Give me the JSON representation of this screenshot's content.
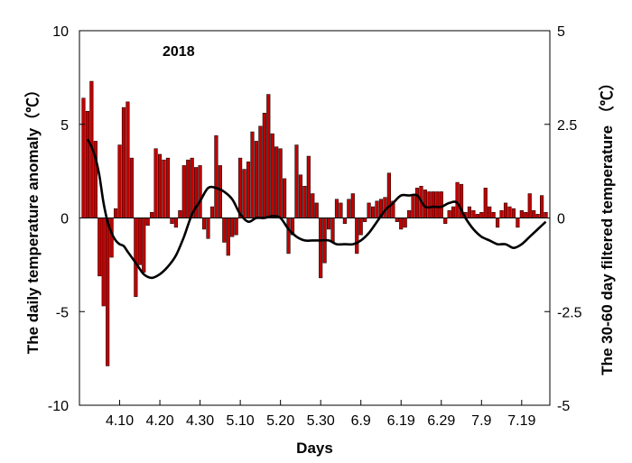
{
  "chart_data": {
    "type": "bar",
    "annotation": "2018",
    "xlabel": "Days",
    "ylabel_left": "The daily temperature anomaly（℃）",
    "ylabel_right": "The 30-60 day filtered temperature （℃）",
    "ylim_left": [
      -10,
      10
    ],
    "ylim_right": [
      -5,
      5
    ],
    "yticks_left": [
      "-10",
      "-5",
      "0",
      "5",
      "10"
    ],
    "yticks_right": [
      "-5",
      "-2.5",
      "0",
      "2.5",
      "5"
    ],
    "xticks": [
      "4.10",
      "4.20",
      "4.30",
      "5.10",
      "5.20",
      "5.30",
      "6.9",
      "6.19",
      "6.29",
      "7.9",
      "7.19"
    ],
    "xtick_days": [
      10,
      20,
      30,
      40,
      50,
      60,
      70,
      80,
      90,
      100,
      110
    ],
    "xlim_days": [
      0,
      117
    ],
    "bar_color": "#c00000",
    "line_color": "#000000",
    "series": [
      {
        "name": "",
        "kind": "bar",
        "axis": "left",
        "days": [
          1,
          2,
          3,
          4,
          5,
          6,
          7,
          8,
          9,
          10,
          11,
          12,
          13,
          14,
          15,
          16,
          17,
          18,
          19,
          20,
          21,
          22,
          23,
          24,
          25,
          26,
          27,
          28,
          29,
          30,
          31,
          32,
          33,
          34,
          35,
          36,
          37,
          38,
          39,
          40,
          41,
          42,
          43,
          44,
          45,
          46,
          47,
          48,
          49,
          50,
          51,
          52,
          53,
          54,
          55,
          56,
          57,
          58,
          59,
          60,
          61,
          62,
          63,
          64,
          65,
          66,
          67,
          68,
          69,
          70,
          71,
          72,
          73,
          74,
          75,
          76,
          77,
          78,
          79,
          80,
          81,
          82,
          83,
          84,
          85,
          86,
          87,
          88,
          89,
          90,
          91,
          92,
          93,
          94,
          95,
          96,
          97,
          98,
          99,
          100,
          101,
          102,
          103,
          104,
          105,
          106,
          107,
          108,
          109,
          110,
          111,
          112,
          113,
          114,
          115,
          116
        ],
        "values": [
          6.4,
          5.7,
          7.3,
          4.1,
          -3.1,
          -4.7,
          -7.9,
          -2.1,
          0.5,
          3.9,
          5.9,
          6.2,
          3.2,
          -4.2,
          -2.5,
          -2.9,
          -0.4,
          0.3,
          3.7,
          3.4,
          3.1,
          3.2,
          -0.3,
          -0.5,
          0.4,
          2.8,
          3.1,
          3.2,
          2.7,
          2.8,
          -0.6,
          -1.1,
          0.6,
          4.4,
          2.8,
          -1.3,
          -2.0,
          -1.0,
          -0.9,
          3.2,
          2.6,
          3.0,
          4.6,
          4.1,
          4.9,
          5.6,
          6.6,
          4.5,
          3.8,
          3.7,
          2.1,
          -1.9,
          -0.9,
          3.9,
          2.3,
          1.7,
          3.3,
          1.3,
          0.8,
          -3.2,
          -2.4,
          -0.6,
          -1.3,
          1.0,
          0.8,
          -0.3,
          1.0,
          1.3,
          -1.9,
          -0.9,
          -0.2,
          0.8,
          0.6,
          0.9,
          1.0,
          1.1,
          2.4,
          0.9,
          -0.2,
          -0.6,
          -0.5,
          0.4,
          1.2,
          1.6,
          1.7,
          1.5,
          1.4,
          1.4,
          1.4,
          1.4,
          -0.3,
          0.4,
          0.6,
          1.9,
          1.8,
          0.3,
          0.6,
          0.4,
          0.2,
          0.3,
          1.6,
          0.6,
          0.3,
          -0.5,
          0.4,
          0.8,
          0.6,
          0.5,
          -0.5,
          0.4,
          0.3,
          1.3,
          0.4,
          0.2,
          1.2,
          0.3
        ]
      },
      {
        "name": "",
        "kind": "line",
        "axis": "right",
        "days": [
          2,
          3,
          4,
          5,
          6,
          7,
          8,
          9,
          10,
          11,
          12,
          14,
          16,
          18,
          20,
          22,
          24,
          26,
          28,
          30,
          32,
          34,
          36,
          38,
          40,
          42,
          44,
          46,
          48,
          50,
          52,
          54,
          56,
          58,
          60,
          62,
          64,
          66,
          68,
          70,
          72,
          74,
          76,
          78,
          80,
          82,
          84,
          86,
          88,
          90,
          92,
          94,
          96,
          98,
          100,
          102,
          104,
          106,
          108,
          110,
          112,
          114,
          116
        ],
        "values": [
          2.1,
          1.9,
          1.6,
          1.1,
          0.4,
          -0.1,
          -0.4,
          -0.6,
          -0.7,
          -0.75,
          -0.9,
          -1.2,
          -1.5,
          -1.6,
          -1.5,
          -1.3,
          -1.0,
          -0.5,
          0.1,
          0.45,
          0.8,
          0.8,
          0.7,
          0.5,
          0.1,
          -0.1,
          0.0,
          0.0,
          0.05,
          0.0,
          -0.3,
          -0.5,
          -0.6,
          -0.6,
          -0.6,
          -0.6,
          -0.7,
          -0.7,
          -0.7,
          -0.6,
          -0.4,
          -0.1,
          0.2,
          0.4,
          0.6,
          0.6,
          0.6,
          0.3,
          0.3,
          0.3,
          0.4,
          0.4,
          0.0,
          -0.3,
          -0.5,
          -0.6,
          -0.7,
          -0.7,
          -0.8,
          -0.7,
          -0.5,
          -0.3,
          -0.1
        ]
      }
    ]
  }
}
